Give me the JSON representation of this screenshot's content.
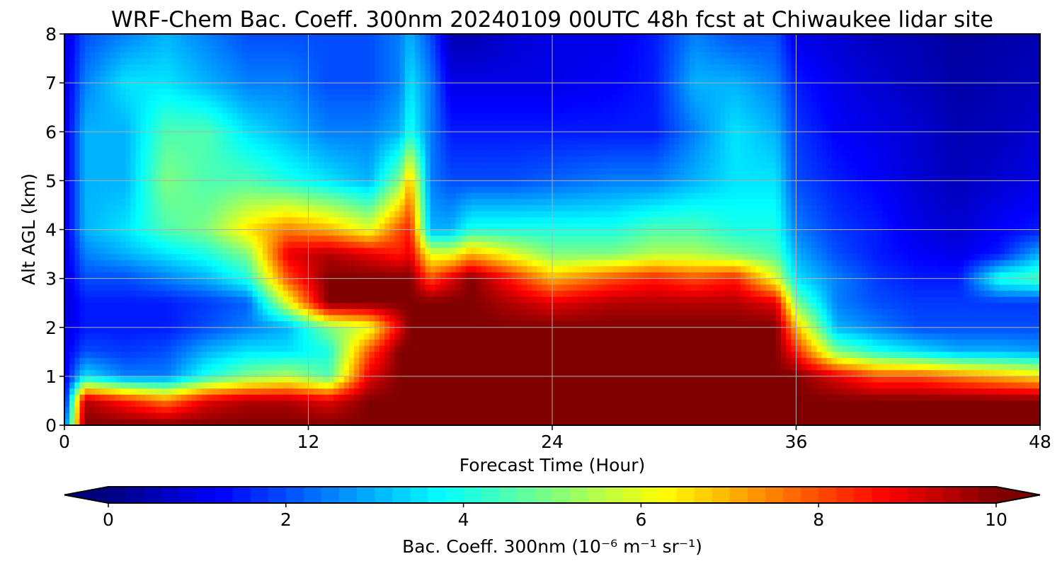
{
  "chart_data": {
    "type": "heatmap",
    "title": "WRF-Chem Bac. Coeff. 300nm  20240109 00UTC 48h fcst at Chiwaukee lidar site",
    "xlabel": "Forecast Time (Hour)",
    "ylabel": "Alt AGL (km)",
    "xlim": [
      0,
      48
    ],
    "ylim": [
      0,
      8
    ],
    "xticks": [
      0,
      12,
      24,
      36,
      48
    ],
    "yticks": [
      0,
      1,
      2,
      3,
      4,
      5,
      6,
      7,
      8
    ],
    "grid": true,
    "colormap": "jet",
    "colorbar": {
      "orientation": "horizontal",
      "label": "Bac. Coeff. 300nm  (10⁻⁶ m⁻¹ sr⁻¹)",
      "range": [
        0,
        10
      ],
      "ticks": [
        0,
        2,
        4,
        6,
        8,
        10
      ],
      "extend": "both",
      "extend_colors": [
        "#00007f",
        "#7f0000"
      ]
    },
    "x": [
      0,
      1,
      3,
      5,
      7,
      9,
      11,
      13,
      15,
      16.5,
      17,
      18,
      19,
      20,
      22,
      24,
      27,
      29,
      31,
      33,
      35,
      36,
      38,
      40,
      42,
      44,
      46,
      48
    ],
    "y": [
      0,
      0.5,
      1,
      1.5,
      2,
      2.5,
      3,
      3.5,
      4,
      5,
      6,
      7,
      8
    ],
    "values": [
      [
        2.0,
        10.0,
        10.0,
        10.0,
        10.0,
        10.0,
        10.0,
        10.0,
        10.0,
        10.0,
        10.0,
        10.0,
        10.0,
        10.0,
        10.0,
        10.0,
        10.0,
        10.0,
        10.0,
        10.0,
        10.0,
        10.0,
        10.0,
        10.0,
        10.0,
        10.0,
        10.0,
        10.0
      ],
      [
        1.0,
        9.5,
        8.5,
        7.5,
        9.0,
        9.5,
        9.5,
        9.0,
        10.0,
        10.0,
        10.0,
        10.0,
        10.0,
        10.0,
        10.0,
        10.0,
        10.0,
        10.0,
        10.0,
        10.0,
        10.0,
        10.0,
        10.0,
        10.0,
        10.0,
        10.0,
        10.0,
        10.0
      ],
      [
        1.0,
        3.5,
        2.5,
        2.5,
        4.0,
        5.0,
        5.5,
        4.5,
        9.0,
        10.0,
        10.0,
        10.0,
        10.0,
        10.0,
        10.0,
        10.0,
        10.0,
        10.0,
        10.0,
        10.0,
        10.0,
        10.0,
        9.0,
        8.0,
        8.0,
        7.5,
        7.0,
        6.5
      ],
      [
        1.0,
        2.0,
        1.8,
        2.0,
        3.0,
        3.5,
        3.5,
        4.0,
        8.0,
        10.0,
        10.0,
        10.0,
        10.0,
        10.0,
        10.0,
        10.0,
        10.0,
        10.0,
        10.0,
        10.0,
        10.0,
        8.5,
        5.0,
        4.0,
        3.5,
        3.0,
        3.0,
        2.8
      ],
      [
        0.8,
        1.5,
        1.5,
        1.5,
        2.0,
        2.5,
        3.0,
        5.0,
        6.0,
        9.0,
        10.0,
        10.0,
        10.0,
        10.0,
        10.0,
        10.0,
        10.0,
        10.0,
        10.0,
        10.0,
        10.0,
        7.0,
        3.0,
        2.5,
        2.0,
        2.0,
        2.0,
        2.0
      ],
      [
        0.8,
        1.5,
        1.5,
        1.5,
        1.8,
        2.2,
        6.0,
        10.0,
        10.0,
        10.0,
        10.0,
        10.0,
        10.0,
        10.0,
        9.5,
        9.0,
        9.5,
        9.5,
        9.5,
        9.5,
        9.0,
        5.0,
        2.5,
        2.0,
        1.8,
        1.8,
        1.8,
        1.8
      ],
      [
        0.8,
        2.0,
        2.0,
        2.5,
        3.0,
        4.0,
        8.0,
        10.0,
        10.0,
        10.0,
        10.0,
        8.0,
        9.0,
        10.0,
        8.5,
        7.0,
        8.0,
        8.5,
        8.0,
        8.5,
        6.0,
        3.5,
        2.5,
        1.8,
        1.5,
        1.5,
        4.0,
        4.5
      ],
      [
        0.8,
        2.5,
        3.0,
        3.5,
        4.0,
        5.0,
        9.0,
        9.5,
        9.0,
        8.5,
        9.0,
        6.0,
        6.0,
        7.0,
        6.0,
        5.0,
        5.0,
        5.5,
        5.5,
        5.0,
        4.5,
        3.0,
        2.0,
        1.5,
        1.2,
        1.0,
        1.5,
        3.0
      ],
      [
        0.8,
        3.0,
        3.5,
        4.5,
        5.0,
        6.5,
        7.5,
        7.0,
        6.0,
        8.0,
        8.5,
        3.0,
        3.0,
        4.0,
        4.0,
        4.0,
        4.0,
        4.5,
        4.5,
        4.0,
        4.0,
        2.5,
        1.8,
        1.5,
        1.0,
        0.8,
        1.2,
        1.5
      ],
      [
        0.8,
        3.0,
        3.0,
        5.0,
        4.5,
        4.5,
        4.0,
        3.5,
        3.0,
        5.0,
        7.0,
        2.5,
        2.0,
        2.0,
        2.0,
        2.2,
        2.5,
        2.5,
        3.0,
        3.5,
        3.5,
        2.0,
        1.5,
        1.2,
        0.8,
        0.6,
        0.8,
        1.0
      ],
      [
        0.8,
        3.0,
        3.0,
        4.5,
        4.5,
        3.5,
        3.0,
        2.5,
        2.5,
        3.0,
        4.0,
        2.5,
        1.5,
        1.5,
        1.5,
        1.5,
        1.5,
        1.5,
        2.5,
        3.5,
        3.0,
        1.8,
        1.2,
        1.0,
        0.8,
        0.5,
        0.6,
        0.8
      ],
      [
        0.8,
        2.5,
        3.5,
        3.5,
        3.0,
        2.5,
        2.5,
        2.0,
        2.0,
        2.5,
        3.5,
        2.5,
        1.0,
        1.0,
        1.0,
        1.0,
        1.2,
        1.5,
        3.0,
        3.0,
        2.5,
        1.5,
        1.0,
        0.8,
        0.6,
        0.4,
        0.5,
        0.6
      ],
      [
        0.8,
        2.0,
        2.5,
        3.0,
        2.5,
        2.0,
        2.0,
        2.0,
        2.0,
        2.5,
        3.0,
        2.0,
        0.5,
        0.5,
        0.8,
        1.0,
        1.0,
        1.5,
        2.5,
        2.0,
        2.0,
        1.0,
        0.8,
        0.6,
        0.5,
        0.3,
        0.4,
        0.5
      ]
    ]
  }
}
